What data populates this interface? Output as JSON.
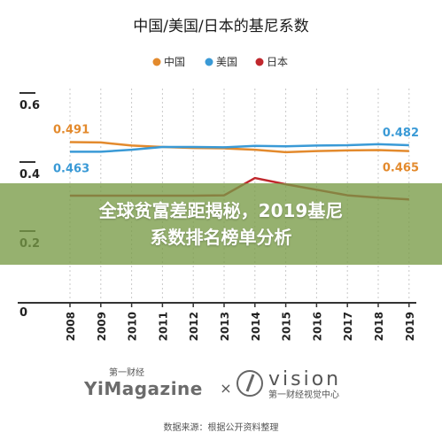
{
  "chart_data": {
    "type": "line",
    "title": "中国/美国/日本的基尼系数",
    "categories": [
      "2008",
      "2009",
      "2010",
      "2011",
      "2012",
      "2013",
      "2014",
      "2015",
      "2016",
      "2017",
      "2018",
      "2019"
    ],
    "ylim": [
      0,
      0.6
    ],
    "yticks": [
      "0.6",
      "0.4",
      "0.2",
      "0"
    ],
    "grid": "vertical dashed",
    "legend_position": "top-center",
    "series": [
      {
        "name": "中国",
        "color": "#e38a2d",
        "values": [
          0.491,
          0.49,
          0.481,
          0.477,
          0.474,
          0.473,
          0.469,
          0.462,
          0.465,
          0.467,
          0.468,
          0.465
        ]
      },
      {
        "name": "美国",
        "color": "#3a9ad6",
        "values": [
          0.463,
          0.463,
          0.469,
          0.477,
          0.477,
          0.476,
          0.48,
          0.479,
          0.481,
          0.482,
          0.485,
          0.482
        ]
      },
      {
        "name": "日本",
        "color": "#c0282d",
        "values": [
          0.336,
          0.336,
          0.336,
          0.336,
          0.336,
          0.337,
          0.387,
          0.369,
          0.353,
          0.337,
          0.33,
          0.325
        ]
      }
    ],
    "data_labels": [
      {
        "text": "0.491",
        "series": "中国",
        "end": "start"
      },
      {
        "text": "0.463",
        "series": "美国",
        "end": "start"
      },
      {
        "text": "0.482",
        "series": "美国",
        "end": "end"
      },
      {
        "text": "0.465",
        "series": "中国",
        "end": "end"
      }
    ]
  },
  "overlay": {
    "line1": "全球贫富差距揭秘，2019基尼",
    "line2": "系数排名榜单分析"
  },
  "branding": {
    "yimag_small": "第一财经",
    "yimag_big": "YiMagazine",
    "cross": "×",
    "vision_big": "vision",
    "vision_small": "第一财经视觉中心"
  },
  "source": "数据来源：根据公开资料整理",
  "colors": {
    "china": "#e38a2d",
    "usa": "#3a9ad6",
    "japan": "#c0282d",
    "banner": "#789b46"
  }
}
